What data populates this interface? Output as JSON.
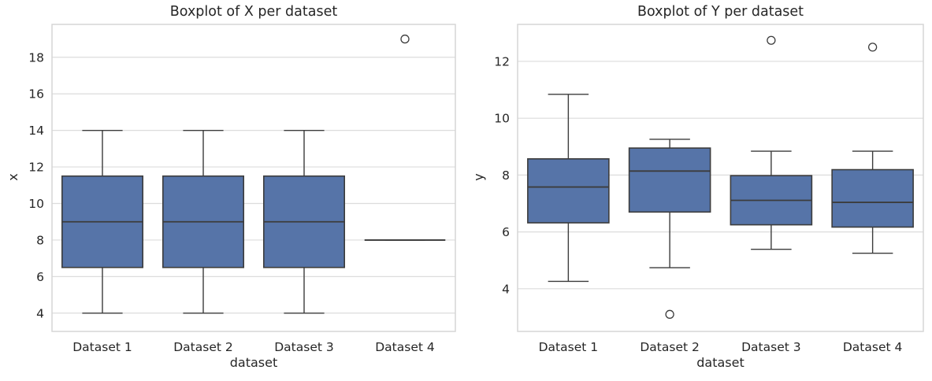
{
  "style": {
    "box_fill": "#5674A8",
    "line_color": "#3C3C3C",
    "grid_color": "#DCDCDC",
    "spine_color": "#D5D5D5",
    "text_color": "#262626",
    "background": "#FFFFFF"
  },
  "chart_data": [
    {
      "type": "boxplot",
      "title": "Boxplot of X per dataset",
      "xlabel": "dataset",
      "ylabel": "x",
      "categories": [
        "Dataset 1",
        "Dataset 2",
        "Dataset 3",
        "Dataset 4"
      ],
      "yticks": [
        4,
        6,
        8,
        10,
        12,
        14,
        16,
        18
      ],
      "ylim": [
        3.0,
        19.8
      ],
      "grid": true,
      "boxes": [
        {
          "whislo": 4,
          "q1": 6.5,
          "med": 9,
          "q3": 11.5,
          "whishi": 14,
          "fliers": []
        },
        {
          "whislo": 4,
          "q1": 6.5,
          "med": 9,
          "q3": 11.5,
          "whishi": 14,
          "fliers": []
        },
        {
          "whislo": 4,
          "q1": 6.5,
          "med": 9,
          "q3": 11.5,
          "whishi": 14,
          "fliers": []
        },
        {
          "whislo": 8,
          "q1": 8,
          "med": 8,
          "q3": 8,
          "whishi": 8,
          "fliers": [
            19
          ]
        }
      ]
    },
    {
      "type": "boxplot",
      "title": "Boxplot of Y per dataset",
      "xlabel": "dataset",
      "ylabel": "y",
      "categories": [
        "Dataset 1",
        "Dataset 2",
        "Dataset 3",
        "Dataset 4"
      ],
      "yticks": [
        4,
        6,
        8,
        10,
        12
      ],
      "ylim": [
        2.5,
        13.3
      ],
      "grid": true,
      "boxes": [
        {
          "whislo": 4.26,
          "q1": 6.32,
          "med": 7.58,
          "q3": 8.57,
          "whishi": 10.84,
          "fliers": []
        },
        {
          "whislo": 4.74,
          "q1": 6.7,
          "med": 8.14,
          "q3": 8.95,
          "whishi": 9.26,
          "fliers": [
            3.1
          ]
        },
        {
          "whislo": 5.39,
          "q1": 6.25,
          "med": 7.11,
          "q3": 7.98,
          "whishi": 8.84,
          "fliers": [
            12.74
          ]
        },
        {
          "whislo": 5.25,
          "q1": 6.17,
          "med": 7.04,
          "q3": 8.19,
          "whishi": 8.84,
          "fliers": [
            12.5
          ]
        }
      ]
    }
  ]
}
